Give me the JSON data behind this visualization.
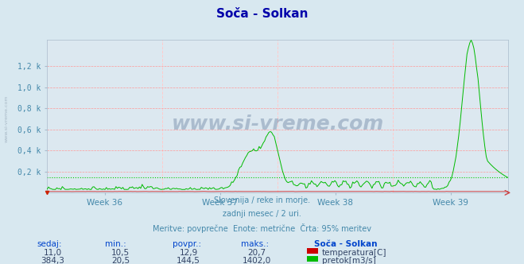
{
  "title": "Soča - Solkan",
  "bg_color": "#d8e8f0",
  "plot_bg_color": "#dce8f0",
  "title_color": "#0000aa",
  "axis_label_color": "#4488aa",
  "text_color": "#4488aa",
  "grid_color_h": "#ff9999",
  "grid_color_v": "#ffcccc",
  "avg_line_color": "#00cc00",
  "temp_color": "#cc0000",
  "flow_color": "#00bb00",
  "x_week_labels": [
    "Week 36",
    "Week 37",
    "Week 38",
    "Week 39"
  ],
  "y_tick_labels": [
    "0,2 k",
    "0,4 k",
    "0,6 k",
    "0,8 k",
    "1,0 k",
    "1,2 k"
  ],
  "y_tick_values": [
    200,
    400,
    600,
    800,
    1000,
    1200
  ],
  "ylim": [
    0,
    1450
  ],
  "avg_flow": 144.5,
  "max_flow": 1402.0,
  "n_points": 336,
  "subtitle1": "Slovenija / reke in morje.",
  "subtitle2": "zadnji mesec / 2 uri.",
  "subtitle3": "Meritve: povprečne  Enote: metrične  Črta: 95% meritev",
  "watermark": "www.si-vreme.com",
  "stat_headers": [
    "sedaj:",
    "min.:",
    "povpr.:",
    "maks.:",
    "Soča - Solkan"
  ],
  "stat_temp": [
    "11,0",
    "10,5",
    "12,9",
    "20,7"
  ],
  "stat_flow": [
    "384,3",
    "20,5",
    "144,5",
    "1402,0"
  ],
  "legend_temp": "temperatura[C]",
  "legend_flow": "pretok[m3/s]",
  "left_label": "www.si-vreme.com"
}
